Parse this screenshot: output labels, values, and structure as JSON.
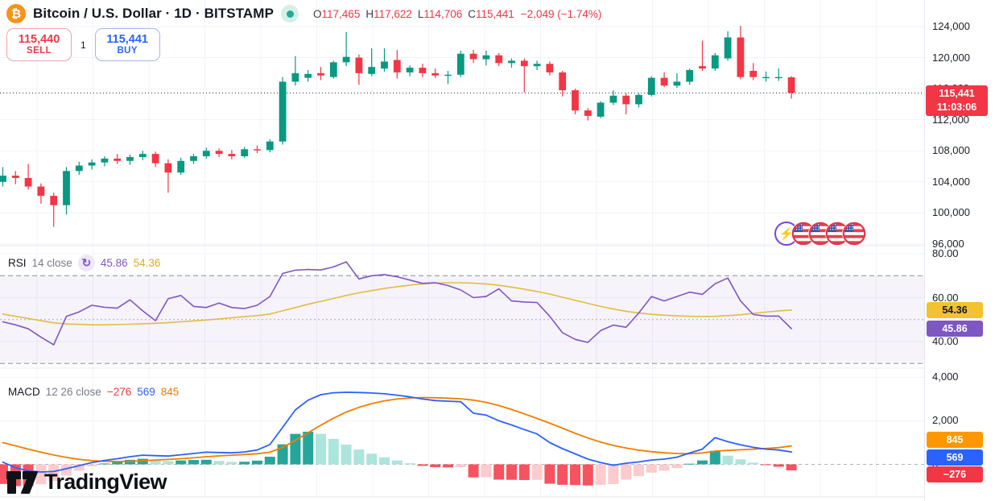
{
  "header": {
    "symbol_icon": "₿",
    "title": "Bitcoin / U.S. Dollar · 1D · BITSTAMP",
    "ohlc": [
      {
        "k": "O",
        "v": "117,465"
      },
      {
        "k": "H",
        "v": "117,622"
      },
      {
        "k": "L",
        "v": "114,706"
      },
      {
        "k": "C",
        "v": "115,441"
      }
    ],
    "change": "−2,049 (−1.74%)"
  },
  "order_panel": {
    "sell_price": "115,440",
    "sell_label": "SELL",
    "spread": "1",
    "buy_price": "115,441",
    "buy_label": "BUY"
  },
  "price_axis": {
    "ticks": [
      {
        "v": 124000,
        "label": "124,000"
      },
      {
        "v": 120000,
        "label": "120,000"
      },
      {
        "v": 116000,
        "label": "116,000"
      },
      {
        "v": 112000,
        "label": "112,000"
      },
      {
        "v": 108000,
        "label": "108,000"
      },
      {
        "v": 104000,
        "label": "104,000"
      },
      {
        "v": 100000,
        "label": "100,000"
      },
      {
        "v": 96000,
        "label": "96,000"
      }
    ],
    "last_price_badge": {
      "price": "115,441",
      "time": "11:03:06"
    }
  },
  "rsi_pane": {
    "title": "RSI",
    "params": "14 close",
    "refresh_icon": "↻",
    "value": "45.86",
    "ma_value": "54.36",
    "ticks": [
      {
        "v": 80,
        "label": "80.00"
      },
      {
        "v": 60,
        "label": "60.00"
      },
      {
        "v": 40,
        "label": "40.00"
      }
    ],
    "badges": [
      {
        "label": "54.36",
        "v": 54.36,
        "bg": "#F2C230",
        "fg": "#131722"
      },
      {
        "label": "45.86",
        "v": 45.86,
        "bg": "#7E57C2",
        "fg": "#FFFFFF"
      }
    ]
  },
  "macd_pane": {
    "title": "MACD",
    "params": "12 26 close",
    "hist_value": "−276",
    "value": "569",
    "signal_value": "845",
    "ticks": [
      {
        "v": 4000,
        "label": "4,000"
      },
      {
        "v": 2000,
        "label": "2,000"
      },
      {
        "v": 0,
        "label": "0"
      }
    ],
    "badges": [
      {
        "label": "845",
        "bg": "#FF9800",
        "fg": "#FFFFFF"
      },
      {
        "label": "569",
        "bg": "#2962FF",
        "fg": "#FFFFFF"
      },
      {
        "label": "−276",
        "bg": "#F23645",
        "fg": "#FFFFFF"
      }
    ]
  },
  "markers": {
    "event_icon": "⚡",
    "flag_count": 4
  },
  "logo": {
    "text": "TradingView"
  },
  "colors": {
    "up": "#089981",
    "down": "#F23645",
    "rsi_line": "#7E57C2",
    "rsi_ma": "#E3BC43",
    "macd_line": "#2962FF",
    "signal_line": "#F57C00",
    "hist_up_grow": "#26A69A",
    "hist_up_fall": "#ACE5DC",
    "hist_down_grow": "#F7525F",
    "hist_down_fall": "#FCCBCD",
    "grid": "#F0F3FA",
    "band_fill": "rgba(126,87,194,0.07)"
  },
  "chart_data": {
    "type": "candlestick",
    "symbol": "Bitcoin / U.S. Dollar",
    "timeframe": "1D",
    "exchange": "BITSTAMP",
    "ohlc_display": {
      "open": 117465,
      "high": 117622,
      "low": 114706,
      "close": 115441,
      "change": -2049,
      "change_pct": -1.74
    },
    "last_price": 115441,
    "last_update_time": "11:03:06",
    "price_axis_range": [
      95800,
      127400
    ],
    "candles": [
      [
        104000,
        105900,
        103400,
        104800
      ],
      [
        104800,
        105400,
        103700,
        104500
      ],
      [
        104500,
        106300,
        103000,
        103400
      ],
      [
        103400,
        103800,
        101200,
        102200
      ],
      [
        102200,
        102600,
        98200,
        101000
      ],
      [
        101000,
        105900,
        99800,
        105400
      ],
      [
        105400,
        106600,
        104900,
        106100
      ],
      [
        106100,
        106900,
        105600,
        106500
      ],
      [
        106500,
        107300,
        106000,
        107000
      ],
      [
        107000,
        107600,
        106300,
        106700
      ],
      [
        106700,
        107500,
        106200,
        107200
      ],
      [
        107200,
        108000,
        106800,
        107600
      ],
      [
        107600,
        107900,
        105900,
        106400
      ],
      [
        106400,
        106900,
        102600,
        105200
      ],
      [
        105200,
        107100,
        104900,
        106700
      ],
      [
        106700,
        107600,
        106300,
        107300
      ],
      [
        107300,
        108400,
        107000,
        108000
      ],
      [
        108000,
        108300,
        107200,
        107600
      ],
      [
        107600,
        108100,
        106900,
        107300
      ],
      [
        107300,
        108500,
        107100,
        108200
      ],
      [
        108200,
        108700,
        107700,
        108100
      ],
      [
        108100,
        109500,
        107800,
        109200
      ],
      [
        109200,
        117500,
        108800,
        116900
      ],
      [
        116900,
        120200,
        116400,
        118000
      ],
      [
        117400,
        118400,
        116900,
        117900
      ],
      [
        118000,
        118800,
        117100,
        117700
      ],
      [
        117500,
        119600,
        117300,
        119400
      ],
      [
        119400,
        123300,
        118900,
        120100
      ],
      [
        120000,
        120400,
        116500,
        118000
      ],
      [
        117900,
        121200,
        117600,
        118800
      ],
      [
        118600,
        121200,
        118200,
        119500
      ],
      [
        119700,
        121000,
        117300,
        118100
      ],
      [
        118100,
        119000,
        117600,
        118700
      ],
      [
        118700,
        119200,
        117500,
        118000
      ],
      [
        118000,
        118600,
        117400,
        117700
      ],
      [
        117700,
        118300,
        116600,
        117800
      ],
      [
        117800,
        120900,
        117500,
        120500
      ],
      [
        120500,
        121000,
        119300,
        119800
      ],
      [
        119800,
        120900,
        119000,
        120300
      ],
      [
        120300,
        120600,
        118900,
        119300
      ],
      [
        119300,
        119900,
        118700,
        119600
      ],
      [
        119600,
        119900,
        115500,
        118900
      ],
      [
        118900,
        119600,
        118400,
        119200
      ],
      [
        119200,
        119500,
        117700,
        118100
      ],
      [
        118100,
        118300,
        115000,
        115800
      ],
      [
        115800,
        116000,
        112700,
        113200
      ],
      [
        113200,
        113500,
        111900,
        112500
      ],
      [
        112400,
        114400,
        112200,
        114200
      ],
      [
        114200,
        115800,
        113900,
        115100
      ],
      [
        115100,
        115400,
        112700,
        114000
      ],
      [
        114000,
        115400,
        113600,
        115200
      ],
      [
        115200,
        117600,
        115000,
        117400
      ],
      [
        117400,
        118100,
        116200,
        116400
      ],
      [
        116400,
        118000,
        116100,
        116900
      ],
      [
        116900,
        118600,
        116500,
        118400
      ],
      [
        118900,
        122200,
        118300,
        118600
      ],
      [
        118600,
        120600,
        118300,
        120300
      ],
      [
        119900,
        123400,
        119600,
        122600
      ],
      [
        122600,
        124100,
        117200,
        117500
      ],
      [
        118300,
        119300,
        117100,
        117500
      ],
      [
        117400,
        118200,
        116900,
        117500
      ],
      [
        117400,
        118600,
        117000,
        117500
      ],
      [
        117465,
        117622,
        114706,
        115441
      ]
    ],
    "rsi": {
      "length": 14,
      "source": "close",
      "last_value": 45.86,
      "ma_last_value": 54.36,
      "levels": {
        "overbought": 70,
        "middle": 50,
        "oversold": 30
      },
      "axis_ticks": [
        80,
        60,
        40
      ],
      "values": [
        49,
        47.6,
        45.8,
        42,
        38.5,
        51.5,
        53.5,
        56.5,
        55.6,
        55.2,
        59,
        54,
        49.5,
        59.5,
        61,
        56,
        55.5,
        57.5,
        55.5,
        55,
        56.5,
        60.5,
        71,
        72.5,
        72.8,
        72.6,
        74,
        76.3,
        68.5,
        70,
        70.5,
        69.5,
        68,
        66.5,
        66.8,
        65.5,
        63.5,
        60,
        60.5,
        64,
        58.5,
        58,
        57.8,
        51.5,
        44,
        41,
        39.6,
        45,
        47.5,
        46.5,
        53,
        60.5,
        58.5,
        60.5,
        62.5,
        61.5,
        66.3,
        68.9,
        58.5,
        52.3,
        51.6,
        51.6,
        45.86
      ],
      "ma_values": [
        52.5,
        51.5,
        50.5,
        49.5,
        48.5,
        48,
        47.8,
        47.6,
        47.6,
        47.7,
        47.9,
        48.1,
        48.3,
        48.6,
        49,
        49.4,
        49.8,
        50.3,
        50.8,
        51.3,
        51.8,
        52.5,
        54,
        55.5,
        57,
        58.3,
        59.6,
        61,
        62.2,
        63.2,
        64.2,
        65,
        65.7,
        66.2,
        66.6,
        66.8,
        66.8,
        66.6,
        66.2,
        65.6,
        64.8,
        63.8,
        62.8,
        61.6,
        60.2,
        58.8,
        57.4,
        56,
        54.8,
        53.8,
        53,
        52.4,
        52,
        51.7,
        51.5,
        51.4,
        51.5,
        51.8,
        52.2,
        52.8,
        53.4,
        54,
        54.36
      ]
    },
    "macd": {
      "fast": 12,
      "slow": 26,
      "source": "close",
      "last_histogram": -276,
      "last_macd": 569,
      "last_signal": 845,
      "axis_ticks": [
        4000,
        2000,
        0
      ],
      "macd": [
        100,
        -150,
        -300,
        -350,
        -330,
        -200,
        -60,
        80,
        180,
        260,
        350,
        420,
        400,
        380,
        440,
        500,
        560,
        545,
        530,
        570,
        660,
        910,
        1700,
        2500,
        2950,
        3200,
        3290,
        3310,
        3300,
        3280,
        3240,
        3180,
        3100,
        3000,
        2930,
        2900,
        2880,
        2350,
        2260,
        2000,
        1810,
        1600,
        1400,
        1000,
        720,
        480,
        240,
        80,
        -40,
        50,
        110,
        200,
        240,
        330,
        520,
        700,
        1230,
        1040,
        900,
        780,
        700,
        660,
        569
      ],
      "signal": [
        1000,
        850,
        700,
        560,
        430,
        320,
        230,
        170,
        140,
        130,
        140,
        165,
        195,
        225,
        260,
        300,
        350,
        390,
        420,
        450,
        490,
        560,
        780,
        1100,
        1450,
        1800,
        2120,
        2400,
        2620,
        2790,
        2920,
        3000,
        3050,
        3070,
        3060,
        3040,
        3010,
        2950,
        2850,
        2700,
        2520,
        2320,
        2110,
        1890,
        1660,
        1430,
        1210,
        1020,
        870,
        750,
        650,
        580,
        530,
        500,
        490,
        520,
        610,
        640,
        670,
        700,
        730,
        770,
        845
      ],
      "histogram_note": "histogram = macd - signal"
    }
  }
}
